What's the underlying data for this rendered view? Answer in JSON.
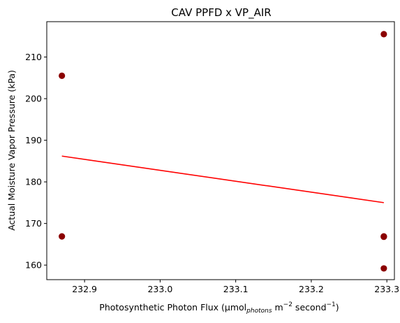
{
  "chart_data": {
    "type": "scatter",
    "title": "CAV PPFD x VP_AIR",
    "xlabel": {
      "base": "Photosynthetic Photon Flux (μmol",
      "sub": "photons",
      "mid1": " m",
      "sup1": "−2",
      "mid2": " second",
      "sup2": "−1",
      "end": ")"
    },
    "ylabel": "Actual Moisture Vapor Pressure (kPa)",
    "xlim": [
      232.85,
      233.31
    ],
    "ylim": [
      156.5,
      218.5
    ],
    "x_ticks": [
      "232.9",
      "233.0",
      "233.1",
      "233.2",
      "233.3"
    ],
    "y_ticks": [
      "160",
      "170",
      "180",
      "190",
      "200",
      "210"
    ],
    "points": [
      {
        "x": 232.87,
        "y": 205.5
      },
      {
        "x": 232.87,
        "y": 166.9
      },
      {
        "x": 233.296,
        "y": 215.5
      },
      {
        "x": 233.296,
        "y": 166.9
      },
      {
        "x": 233.296,
        "y": 166.8
      },
      {
        "x": 233.296,
        "y": 159.2
      }
    ],
    "trendline": {
      "x": [
        232.87,
        233.296
      ],
      "y": [
        186.2,
        175.0
      ]
    },
    "point_color": "#8b0000",
    "trendline_color": "#ff0000",
    "grid": false,
    "legend": "none"
  }
}
